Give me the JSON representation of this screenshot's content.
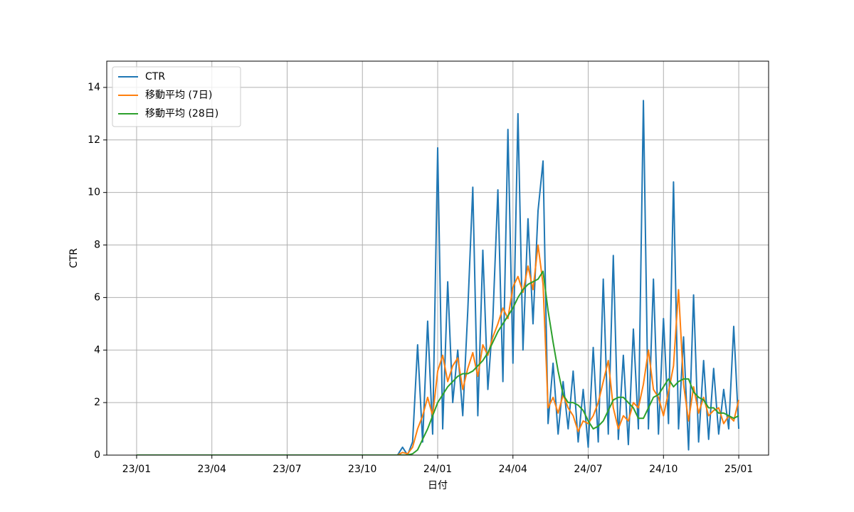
{
  "chart_data": {
    "type": "line",
    "xlabel": "日付",
    "ylabel": "CTR",
    "x": [
      0,
      10.4,
      10.6,
      10.8,
      11,
      11.2,
      11.4,
      11.6,
      11.8,
      12,
      12.2,
      12.4,
      12.6,
      12.8,
      13,
      13.2,
      13.4,
      13.6,
      13.8,
      14,
      14.2,
      14.4,
      14.6,
      14.8,
      15,
      15.2,
      15.4,
      15.6,
      15.8,
      16,
      16.2,
      16.4,
      16.6,
      16.8,
      17,
      17.2,
      17.4,
      17.6,
      17.8,
      18,
      18.2,
      18.4,
      18.6,
      18.8,
      19,
      19.2,
      19.4,
      19.6,
      19.8,
      20,
      20.2,
      20.4,
      20.6,
      20.8,
      21,
      21.2,
      21.4,
      21.6,
      21.8,
      22,
      22.2,
      22.4,
      22.6,
      22.8,
      23,
      23.2,
      23.4,
      23.6,
      23.8,
      24
    ],
    "series": [
      {
        "name": "CTR",
        "color": "#1f77b4",
        "values": [
          0,
          0,
          0.3,
          0,
          0.5,
          4.2,
          0.5,
          5.1,
          0.8,
          11.7,
          1.0,
          6.6,
          2.0,
          4.0,
          1.5,
          5.5,
          10.2,
          1.5,
          7.8,
          2.5,
          5.2,
          10.1,
          2.8,
          12.4,
          3.5,
          13.0,
          4.0,
          9.0,
          5.0,
          9.3,
          11.2,
          1.2,
          3.5,
          0.8,
          2.8,
          1.0,
          3.2,
          0.5,
          2.5,
          0.3,
          4.1,
          0.5,
          6.7,
          0.8,
          7.6,
          0.6,
          3.8,
          0.4,
          4.8,
          1.0,
          13.5,
          1.0,
          6.7,
          0.8,
          5.2,
          1.2,
          10.4,
          1.0,
          4.5,
          0.2,
          6.1,
          0.5,
          3.6,
          0.6,
          3.3,
          0.8,
          2.5,
          1.0,
          4.9,
          1.0
        ]
      },
      {
        "name": "移動平均 (7日)",
        "color": "#ff7f0e",
        "values": [
          0,
          0,
          0.1,
          0.05,
          0.3,
          1.0,
          1.5,
          2.2,
          1.5,
          3.2,
          3.8,
          2.8,
          3.4,
          3.7,
          2.5,
          3.3,
          3.9,
          3.0,
          4.2,
          3.8,
          4.5,
          5.0,
          5.6,
          5.2,
          6.4,
          6.8,
          6.2,
          7.2,
          6.3,
          8.0,
          6.5,
          1.8,
          2.2,
          1.6,
          2.3,
          1.8,
          1.5,
          0.9,
          1.3,
          1.2,
          1.5,
          2.0,
          2.8,
          3.6,
          1.8,
          1.0,
          1.5,
          1.3,
          2.0,
          1.8,
          2.7,
          4.0,
          2.5,
          2.2,
          1.5,
          2.4,
          3.4,
          6.3,
          2.7,
          1.3,
          2.6,
          1.6,
          2.2,
          1.5,
          1.7,
          1.8,
          1.2,
          1.5,
          1.3,
          2.1
        ]
      },
      {
        "name": "移動平均 (28日)",
        "color": "#2ca02c",
        "values": [
          0,
          0,
          0,
          0,
          0.05,
          0.2,
          0.6,
          1.0,
          1.5,
          2.0,
          2.3,
          2.6,
          2.8,
          3.0,
          3.1,
          3.1,
          3.2,
          3.4,
          3.6,
          3.9,
          4.3,
          4.7,
          5.0,
          5.3,
          5.6,
          6.0,
          6.3,
          6.5,
          6.6,
          6.7,
          7.0,
          5.5,
          4.3,
          3.2,
          2.3,
          2.0,
          2.0,
          1.9,
          1.7,
          1.3,
          1.0,
          1.1,
          1.3,
          1.7,
          2.1,
          2.2,
          2.2,
          2.0,
          1.8,
          1.4,
          1.4,
          1.8,
          2.2,
          2.3,
          2.6,
          2.9,
          2.6,
          2.8,
          2.9,
          2.9,
          2.4,
          2.2,
          2.1,
          1.8,
          1.8,
          1.6,
          1.6,
          1.5,
          1.4,
          1.5
        ]
      }
    ],
    "xlim": [
      -1.19,
      25.19
    ],
    "xticks": [
      {
        "value": 0,
        "label": "23/01"
      },
      {
        "value": 3,
        "label": "23/04"
      },
      {
        "value": 6,
        "label": "23/07"
      },
      {
        "value": 9,
        "label": "23/10"
      },
      {
        "value": 12,
        "label": "24/01"
      },
      {
        "value": 15,
        "label": "24/04"
      },
      {
        "value": 18,
        "label": "24/07"
      },
      {
        "value": 21,
        "label": "24/10"
      },
      {
        "value": 24,
        "label": "25/01"
      }
    ],
    "ylim": [
      0,
      15
    ],
    "yticks": [
      0,
      2,
      4,
      6,
      8,
      10,
      12,
      14
    ],
    "grid": true,
    "legend": "upper left"
  }
}
